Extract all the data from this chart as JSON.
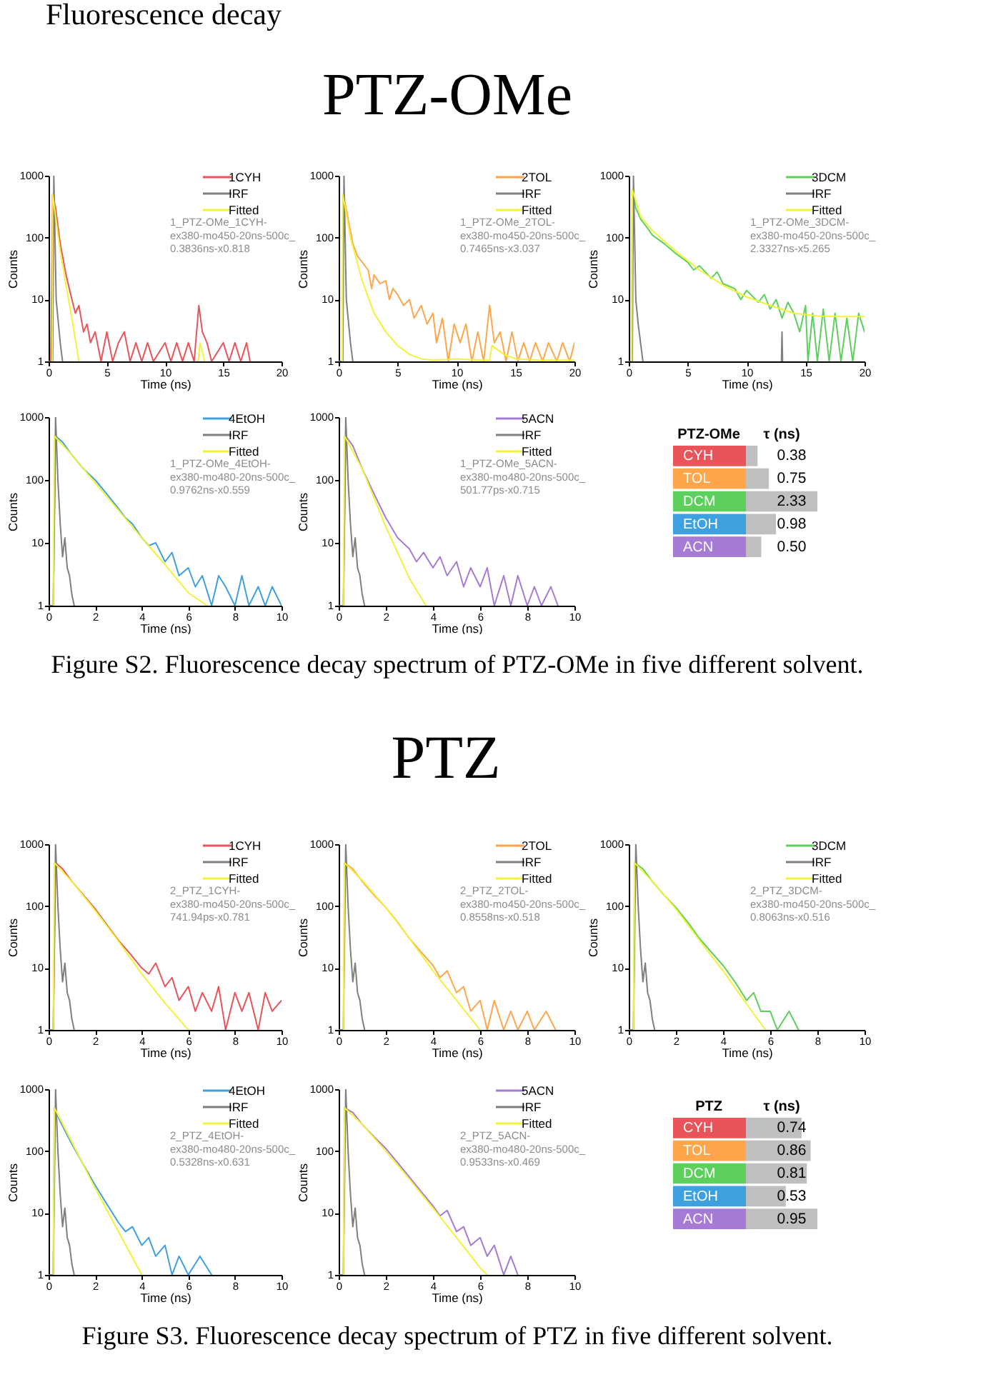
{
  "chart_data": [
    {
      "type": "other",
      "annotations": [
        "Fluorescence decay"
      ]
    },
    {
      "type": "other",
      "title": "PTZ-OMe"
    },
    {
      "type": "line",
      "xlabel": "Time (ns)",
      "ylabel": "Counts",
      "log": "y",
      "xlim": [
        0,
        20
      ],
      "xticks": [
        0,
        5,
        10,
        15,
        20
      ],
      "ylim": [
        1,
        1000
      ],
      "yticks": [
        1,
        10,
        100,
        1000
      ],
      "legend": "top right",
      "annotations": [
        "1_PTZ-OMe_1CYH-",
        "ex380-mo450-20ns-500c_",
        "0.3836ns-x0.818"
      ],
      "series": [
        {
          "name": "1CYH",
          "color": "#e8545a",
          "x": [
            0,
            0.2,
            0.35,
            0.6,
            1,
            1.5,
            2,
            2.3,
            2.6,
            3,
            3.3,
            3.6,
            4,
            4.5,
            5,
            5.5,
            6,
            6.5,
            7,
            7.5,
            8,
            8.5,
            9,
            10,
            10.5,
            11,
            11.5,
            12,
            12.5,
            12.9,
            13.2,
            13.6,
            14,
            15,
            15.5,
            16,
            16.5,
            17,
            17.3
          ],
          "values": [
            1,
            1,
            500,
            300,
            80,
            25,
            10,
            6,
            8,
            3,
            4,
            2,
            3,
            1,
            3,
            1,
            2,
            3,
            1,
            2,
            1,
            2,
            1,
            2,
            1,
            2,
            1,
            2,
            1,
            8,
            3,
            2,
            1,
            2,
            1,
            2,
            1,
            2,
            1
          ]
        },
        {
          "name": "IRF",
          "color": "#7f7f7f",
          "x": [
            0,
            0.35,
            0.45,
            0.55,
            0.65,
            0.8,
            1,
            1.2
          ],
          "values": [
            1,
            1,
            1000,
            100,
            10,
            5,
            2,
            1
          ]
        },
        {
          "name": "Fitted",
          "color": "#f2f23a",
          "x": [
            0.3,
            0.35,
            1,
            1.5,
            2,
            2.6,
            2.7,
            12.85,
            13,
            13.4
          ],
          "values": [
            1,
            500,
            60,
            17,
            5,
            1,
            null,
            1,
            2,
            1
          ]
        }
      ]
    },
    {
      "type": "line",
      "xlabel": "Time (ns)",
      "ylabel": "Counts",
      "log": "y",
      "xlim": [
        0,
        20
      ],
      "xticks": [
        0,
        5,
        10,
        15,
        20
      ],
      "ylim": [
        1,
        1000
      ],
      "yticks": [
        1,
        10,
        100,
        1000
      ],
      "legend": "top right",
      "annotations": [
        "1_PTZ-OMe_2TOL-",
        "ex380-mo450-20ns-500c_",
        "0.7465ns-x3.037"
      ],
      "series": [
        {
          "name": "2TOL",
          "color": "#ffa64d",
          "x": [
            0,
            0.3,
            0.4,
            0.8,
            1.2,
            1.6,
            2,
            2.5,
            2.8,
            3,
            3.5,
            4,
            4.3,
            4.6,
            5,
            5.5,
            6,
            6.4,
            7,
            7.5,
            8,
            8.3,
            8.8,
            9.3,
            9.8,
            10.3,
            10.8,
            11.3,
            11.8,
            12.3,
            12.8,
            13.2,
            13.7,
            14.2,
            14.7,
            15.2,
            15.7,
            16.2,
            16.7,
            17.3,
            17.8,
            18.5,
            19,
            19.6,
            20
          ],
          "values": [
            1,
            1,
            500,
            200,
            80,
            50,
            40,
            30,
            15,
            25,
            18,
            20,
            10,
            15,
            12,
            8,
            10,
            5,
            8,
            4,
            6,
            2,
            5,
            1,
            4,
            2,
            4,
            1,
            3,
            1,
            8,
            2,
            3,
            1,
            3,
            1,
            2,
            1,
            2,
            1,
            2,
            1,
            2,
            1,
            2
          ]
        },
        {
          "name": "IRF",
          "color": "#7f7f7f",
          "x": [
            0,
            0.35,
            0.45,
            0.55,
            0.65,
            0.8,
            1,
            1.2
          ],
          "values": [
            1,
            1,
            1000,
            100,
            10,
            5,
            2,
            1
          ]
        },
        {
          "name": "Fitted",
          "color": "#f2f23a",
          "x": [
            0.3,
            0.35,
            1,
            2,
            3,
            4,
            5,
            6,
            7,
            8,
            10,
            12,
            12.8,
            13,
            14,
            15,
            17,
            20
          ],
          "values": [
            1,
            500,
            100,
            20,
            6,
            3,
            1.8,
            1.3,
            1.1,
            1.05,
            1.1,
            1.05,
            1.05,
            1.8,
            1.3,
            1.1,
            1.05,
            1.05
          ]
        }
      ]
    },
    {
      "type": "line",
      "xlabel": "Time (ns)",
      "ylabel": "Counts",
      "log": "y",
      "xlim": [
        0,
        20
      ],
      "xticks": [
        0,
        5,
        10,
        15,
        20
      ],
      "ylim": [
        1,
        1000
      ],
      "yticks": [
        1,
        10,
        100,
        1000
      ],
      "legend": "top right",
      "annotations": [
        "1_PTZ-OMe_3DCM-",
        "ex380-mo450-20ns-500c_",
        "2.3327ns-x5.265"
      ],
      "series": [
        {
          "name": "3DCM",
          "color": "#5ccf5c",
          "x": [
            0,
            0.25,
            0.3,
            0.6,
            1,
            1.5,
            2,
            3,
            4,
            5,
            5.5,
            6,
            7,
            7.5,
            8,
            9,
            9.5,
            10,
            11,
            11.5,
            12,
            12.5,
            13,
            13.5,
            14,
            14.5,
            15,
            15.2,
            15.6,
            16,
            16.5,
            17,
            17.5,
            18,
            18.5,
            19,
            19.5,
            20
          ],
          "values": [
            1,
            1,
            600,
            300,
            200,
            150,
            110,
            80,
            55,
            40,
            30,
            35,
            22,
            28,
            18,
            15,
            10,
            14,
            9,
            12,
            7,
            10,
            5,
            9,
            6,
            3,
            8,
            1,
            6,
            1,
            7,
            1,
            6,
            1,
            5,
            1,
            6,
            3
          ]
        },
        {
          "name": "IRF",
          "color": "#7f7f7f",
          "x": [
            0,
            0.3,
            0.4,
            0.5,
            0.6,
            0.8,
            1,
            1.2,
            12.9,
            12.95,
            13,
            13.05
          ],
          "values": [
            1,
            1,
            1000,
            100,
            10,
            4,
            2,
            1,
            null,
            1,
            3,
            1
          ]
        },
        {
          "name": "Fitted",
          "color": "#f2f23a",
          "x": [
            0.25,
            0.3,
            1,
            2,
            4,
            6,
            8,
            10,
            12,
            14,
            16,
            18,
            20
          ],
          "values": [
            1,
            600,
            220,
            130,
            60,
            30,
            17,
            11,
            8,
            6,
            5.4,
            5.3,
            5.3
          ]
        }
      ]
    },
    {
      "type": "line",
      "xlabel": "Time (ns)",
      "ylabel": "Counts",
      "log": "y",
      "xlim": [
        0,
        10
      ],
      "xticks": [
        0,
        2,
        4,
        6,
        8,
        10
      ],
      "ylim": [
        1,
        1000
      ],
      "yticks": [
        1,
        10,
        100,
        1000
      ],
      "legend": "top right",
      "annotations": [
        "1_PTZ-OMe_4EtOH-",
        "ex380-mo480-20ns-500c_",
        "0.9762ns-x0.559"
      ],
      "series": [
        {
          "name": "4EtOH",
          "color": "#3fa0e0",
          "x": [
            0,
            0.2,
            0.3,
            0.6,
            1,
            1.5,
            2,
            2.5,
            3,
            3.3,
            3.6,
            4,
            4.3,
            4.6,
            5,
            5.3,
            5.6,
            6,
            6.3,
            6.6,
            7,
            7.3,
            7.6,
            8,
            8.3,
            8.6,
            9,
            9.3,
            9.6,
            10
          ],
          "values": [
            1,
            1,
            500,
            400,
            250,
            150,
            100,
            60,
            35,
            25,
            20,
            12,
            9,
            10,
            5,
            7,
            3,
            4,
            2,
            3,
            1,
            3,
            2,
            1,
            3,
            1,
            2,
            1,
            2,
            1
          ]
        },
        {
          "name": "IRF",
          "color": "#7f7f7f",
          "x": [
            0,
            0.2,
            0.3,
            0.4,
            0.5,
            0.6,
            0.7,
            0.8,
            0.9,
            1,
            1.1
          ],
          "values": [
            1,
            1,
            1000,
            100,
            20,
            6,
            12,
            4,
            3,
            1.5,
            1
          ]
        },
        {
          "name": "Fitted",
          "color": "#f2f23a",
          "x": [
            0.2,
            0.25,
            1,
            2,
            3,
            4,
            5,
            6,
            6.8
          ],
          "values": [
            1,
            500,
            250,
            90,
            33,
            12,
            4.5,
            1.6,
            1
          ]
        }
      ]
    },
    {
      "type": "line",
      "xlabel": "Time (ns)",
      "ylabel": "Counts",
      "log": "y",
      "xlim": [
        0,
        10
      ],
      "xticks": [
        0,
        2,
        4,
        6,
        8,
        10
      ],
      "ylim": [
        1,
        1000
      ],
      "yticks": [
        1,
        10,
        100,
        1000
      ],
      "legend": "top right",
      "annotations": [
        "1_PTZ-OMe_5ACN-",
        "ex380-mo480-20ns-500c_",
        "501.77ps-x0.715"
      ],
      "series": [
        {
          "name": "5ACN",
          "color": "#a57bd6",
          "x": [
            0,
            0.2,
            0.3,
            0.6,
            1,
            1.5,
            2,
            2.5,
            3,
            3.3,
            3.6,
            4,
            4.3,
            4.6,
            5,
            5.3,
            5.6,
            6,
            6.3,
            6.6,
            7,
            7.3,
            7.6,
            8,
            8.3,
            8.6,
            9,
            9.3
          ],
          "values": [
            1,
            1,
            500,
            350,
            150,
            60,
            25,
            12,
            8,
            5,
            7,
            4,
            6,
            3,
            5,
            2,
            4,
            2,
            4,
            1,
            3,
            1,
            3,
            1,
            2,
            1,
            2,
            1
          ]
        },
        {
          "name": "IRF",
          "color": "#7f7f7f",
          "x": [
            0,
            0.2,
            0.3,
            0.4,
            0.5,
            0.6,
            0.7,
            0.8,
            0.9,
            1,
            1.1
          ],
          "values": [
            1,
            1,
            1000,
            100,
            20,
            6,
            12,
            4,
            3,
            1.5,
            1
          ]
        },
        {
          "name": "Fitted",
          "color": "#f2f23a",
          "x": [
            0.2,
            0.25,
            1,
            2,
            3,
            3.7
          ],
          "values": [
            1,
            500,
            150,
            18,
            2.7,
            1
          ]
        }
      ]
    },
    {
      "type": "bar",
      "orientation": "horizontal",
      "ylabel": "PTZ-OMe",
      "xlabel": "τ (ns)",
      "categories": [
        "CYH",
        "TOL",
        "DCM",
        "EtOH",
        "ACN"
      ],
      "values": [
        0.38,
        0.75,
        2.33,
        0.98,
        0.5
      ],
      "value_labels": [
        "0.38",
        "0.75",
        "2.33",
        "0.98",
        "0.50"
      ],
      "color": "#bfbfbf"
    },
    {
      "type": "other",
      "annotations": [
        "Figure S2. Fluorescence decay spectrum of PTZ-OMe in five different solvent."
      ]
    },
    {
      "type": "other",
      "title": "PTZ"
    },
    {
      "type": "line",
      "xlabel": "Time (ns)",
      "ylabel": "Counts",
      "log": "y",
      "xlim": [
        0,
        10
      ],
      "xticks": [
        0,
        2,
        4,
        6,
        8,
        10
      ],
      "ylim": [
        1,
        1000
      ],
      "yticks": [
        1,
        10,
        100,
        1000
      ],
      "legend": "top right",
      "annotations": [
        "2_PTZ_1CYH-",
        "ex380-mo450-20ns-500c_",
        "741.94ps-x0.781"
      ],
      "series": [
        {
          "name": "1CYH",
          "color": "#e8545a",
          "x": [
            0,
            0.2,
            0.3,
            0.6,
            1,
            1.5,
            2,
            2.5,
            3,
            3.5,
            4,
            4.3,
            4.6,
            5,
            5.3,
            5.6,
            6,
            6.3,
            6.6,
            7,
            7.3,
            7.6,
            8,
            8.3,
            8.6,
            9,
            9.3,
            9.6,
            10
          ],
          "values": [
            1,
            1,
            500,
            400,
            250,
            150,
            90,
            50,
            28,
            17,
            10,
            8,
            12,
            5,
            7,
            3,
            5,
            2,
            4,
            2,
            5,
            1,
            4,
            2,
            4,
            1,
            4,
            2,
            3
          ]
        },
        {
          "name": "IRF",
          "color": "#7f7f7f",
          "x": [
            0,
            0.2,
            0.3,
            0.4,
            0.5,
            0.6,
            0.7,
            0.8,
            0.9,
            1,
            1.1
          ],
          "values": [
            1,
            1,
            1000,
            100,
            20,
            6,
            12,
            4,
            3,
            1.5,
            1
          ]
        },
        {
          "name": "Fitted",
          "color": "#f2f23a",
          "x": [
            0.2,
            0.25,
            1,
            2,
            3,
            4,
            5,
            6
          ],
          "values": [
            1,
            500,
            250,
            85,
            27,
            8,
            2.7,
            1
          ]
        }
      ]
    },
    {
      "type": "line",
      "xlabel": "Time (ns)",
      "ylabel": "Counts",
      "log": "y",
      "xlim": [
        0,
        10
      ],
      "xticks": [
        0,
        2,
        4,
        6,
        8,
        10
      ],
      "ylim": [
        1,
        1000
      ],
      "yticks": [
        1,
        10,
        100,
        1000
      ],
      "legend": "top right",
      "annotations": [
        "2_PTZ_2TOL-",
        "ex380-mo450-20ns-500c_",
        "0.8558ns-x0.518"
      ],
      "series": [
        {
          "name": "2TOL",
          "color": "#ffa64d",
          "x": [
            0,
            0.2,
            0.25,
            0.6,
            1,
            1.5,
            2,
            2.5,
            3,
            3.5,
            4,
            4.3,
            4.6,
            5,
            5.3,
            5.6,
            6,
            6.3,
            6.6,
            7,
            7.3,
            7.6,
            8,
            8.3,
            8.8,
            9.2
          ],
          "values": [
            1,
            1,
            500,
            400,
            250,
            150,
            95,
            55,
            30,
            18,
            11,
            7,
            9,
            4,
            5,
            2,
            3,
            1,
            3,
            1,
            2,
            1,
            2,
            1,
            2,
            1
          ]
        },
        {
          "name": "IRF",
          "color": "#7f7f7f",
          "x": [
            0,
            0.2,
            0.3,
            0.4,
            0.5,
            0.6,
            0.7,
            0.8,
            0.9,
            1,
            1.1
          ],
          "values": [
            1,
            1,
            1000,
            100,
            20,
            6,
            12,
            4,
            3,
            1.5,
            1
          ]
        },
        {
          "name": "Fitted",
          "color": "#f2f23a",
          "x": [
            0.2,
            0.25,
            1,
            2,
            3,
            4,
            5,
            6
          ],
          "values": [
            1,
            500,
            260,
            95,
            30,
            9,
            3,
            1
          ]
        }
      ]
    },
    {
      "type": "line",
      "xlabel": "Time (ns)",
      "ylabel": "Counts",
      "log": "y",
      "xlim": [
        0,
        10
      ],
      "xticks": [
        0,
        2,
        4,
        6,
        8,
        10
      ],
      "ylim": [
        1,
        1000
      ],
      "yticks": [
        1,
        10,
        100,
        1000
      ],
      "legend": "top right",
      "annotations": [
        "2_PTZ_3DCM-",
        "ex380-mo450-20ns-500c_",
        "0.8063ns-x0.516"
      ],
      "series": [
        {
          "name": "3DCM",
          "color": "#5ccf5c",
          "x": [
            0,
            0.2,
            0.25,
            0.6,
            1,
            1.5,
            2,
            2.5,
            3,
            3.5,
            4,
            4.5,
            5,
            5.3,
            5.6,
            6,
            6.3,
            6.8,
            7.2
          ],
          "values": [
            1,
            1,
            500,
            400,
            250,
            150,
            95,
            55,
            30,
            18,
            11,
            6,
            3,
            4,
            2,
            2,
            1,
            2,
            1
          ]
        },
        {
          "name": "IRF",
          "color": "#7f7f7f",
          "x": [
            0,
            0.2,
            0.3,
            0.4,
            0.5,
            0.6,
            0.7,
            0.8,
            0.9,
            1,
            1.1
          ],
          "values": [
            1,
            1,
            1000,
            100,
            20,
            6,
            12,
            4,
            3,
            1.5,
            1
          ]
        },
        {
          "name": "Fitted",
          "color": "#f2f23a",
          "x": [
            0.2,
            0.25,
            1,
            2,
            3,
            4,
            5,
            5.8
          ],
          "values": [
            1,
            500,
            250,
            90,
            28,
            9,
            2.6,
            1
          ]
        }
      ]
    },
    {
      "type": "line",
      "xlabel": "Time (ns)",
      "ylabel": "Counts",
      "log": "y",
      "xlim": [
        0,
        10
      ],
      "xticks": [
        0,
        2,
        4,
        6,
        8,
        10
      ],
      "ylim": [
        1,
        1000
      ],
      "yticks": [
        1,
        10,
        100,
        1000
      ],
      "legend": "top right",
      "annotations": [
        "2_PTZ_4EtOH-",
        "ex380-mo480-20ns-500c_",
        "0.5328ns-x0.631"
      ],
      "series": [
        {
          "name": "4EtOH",
          "color": "#3fa0e0",
          "x": [
            0,
            0.2,
            0.25,
            0.5,
            1,
            1.5,
            2,
            2.5,
            3,
            3.3,
            3.6,
            4,
            4.3,
            4.6,
            5,
            5.3,
            5.6,
            6,
            6.5,
            7
          ],
          "values": [
            1,
            1,
            500,
            300,
            130,
            60,
            28,
            14,
            7,
            5,
            6,
            3,
            4,
            2,
            3,
            1,
            2,
            1,
            2,
            1
          ]
        },
        {
          "name": "IRF",
          "color": "#7f7f7f",
          "x": [
            0,
            0.2,
            0.3,
            0.4,
            0.5,
            0.6,
            0.7,
            0.8,
            0.9,
            1,
            1.1
          ],
          "values": [
            1,
            1,
            1000,
            100,
            20,
            6,
            12,
            4,
            3,
            1.5,
            1
          ]
        },
        {
          "name": "Fitted",
          "color": "#f2f23a",
          "x": [
            0.2,
            0.25,
            1,
            2,
            3,
            4
          ],
          "values": [
            1,
            500,
            140,
            25,
            5,
            1
          ]
        }
      ]
    },
    {
      "type": "line",
      "xlabel": "Time (ns)",
      "ylabel": "Counts",
      "log": "y",
      "xlim": [
        0,
        10
      ],
      "xticks": [
        0,
        2,
        4,
        6,
        8,
        10
      ],
      "ylim": [
        1,
        1000
      ],
      "yticks": [
        1,
        10,
        100,
        1000
      ],
      "legend": "top right",
      "annotations": [
        "2_PTZ_5ACN-",
        "ex380-mo480-20ns-500c_",
        "0.9533ns-x0.469"
      ],
      "series": [
        {
          "name": "5ACN",
          "color": "#a57bd6",
          "x": [
            0,
            0.2,
            0.25,
            0.6,
            1,
            1.5,
            2,
            2.5,
            3,
            3.5,
            4,
            4.3,
            4.6,
            5,
            5.3,
            5.6,
            6,
            6.3,
            6.6,
            7,
            7.3,
            7.6
          ],
          "values": [
            1,
            1,
            500,
            420,
            270,
            170,
            110,
            65,
            38,
            22,
            13,
            9,
            11,
            5,
            6,
            3,
            4,
            2,
            3,
            1,
            2,
            1
          ]
        },
        {
          "name": "IRF",
          "color": "#7f7f7f",
          "x": [
            0,
            0.2,
            0.3,
            0.4,
            0.5,
            0.6,
            0.7,
            0.8,
            0.9,
            1,
            1.1
          ],
          "values": [
            1,
            1,
            1000,
            100,
            20,
            6,
            12,
            4,
            3,
            1.5,
            1
          ]
        },
        {
          "name": "Fitted",
          "color": "#f2f23a",
          "x": [
            0.2,
            0.25,
            1,
            2,
            3,
            4,
            5,
            6,
            6.3
          ],
          "values": [
            1,
            500,
            270,
            100,
            35,
            12,
            4,
            1.3,
            1
          ]
        }
      ]
    },
    {
      "type": "bar",
      "orientation": "horizontal",
      "ylabel": "PTZ",
      "xlabel": "τ (ns)",
      "categories": [
        "CYH",
        "TOL",
        "DCM",
        "EtOH",
        "ACN"
      ],
      "values": [
        0.74,
        0.86,
        0.81,
        0.53,
        0.95
      ],
      "value_labels": [
        "0.74",
        "0.86",
        "0.81",
        "0.53",
        "0.95"
      ],
      "color": "#bfbfbf"
    },
    {
      "type": "other",
      "annotations": [
        "Figure S3. Fluorescence decay spectrum of PTZ in five different solvent."
      ]
    }
  ]
}
